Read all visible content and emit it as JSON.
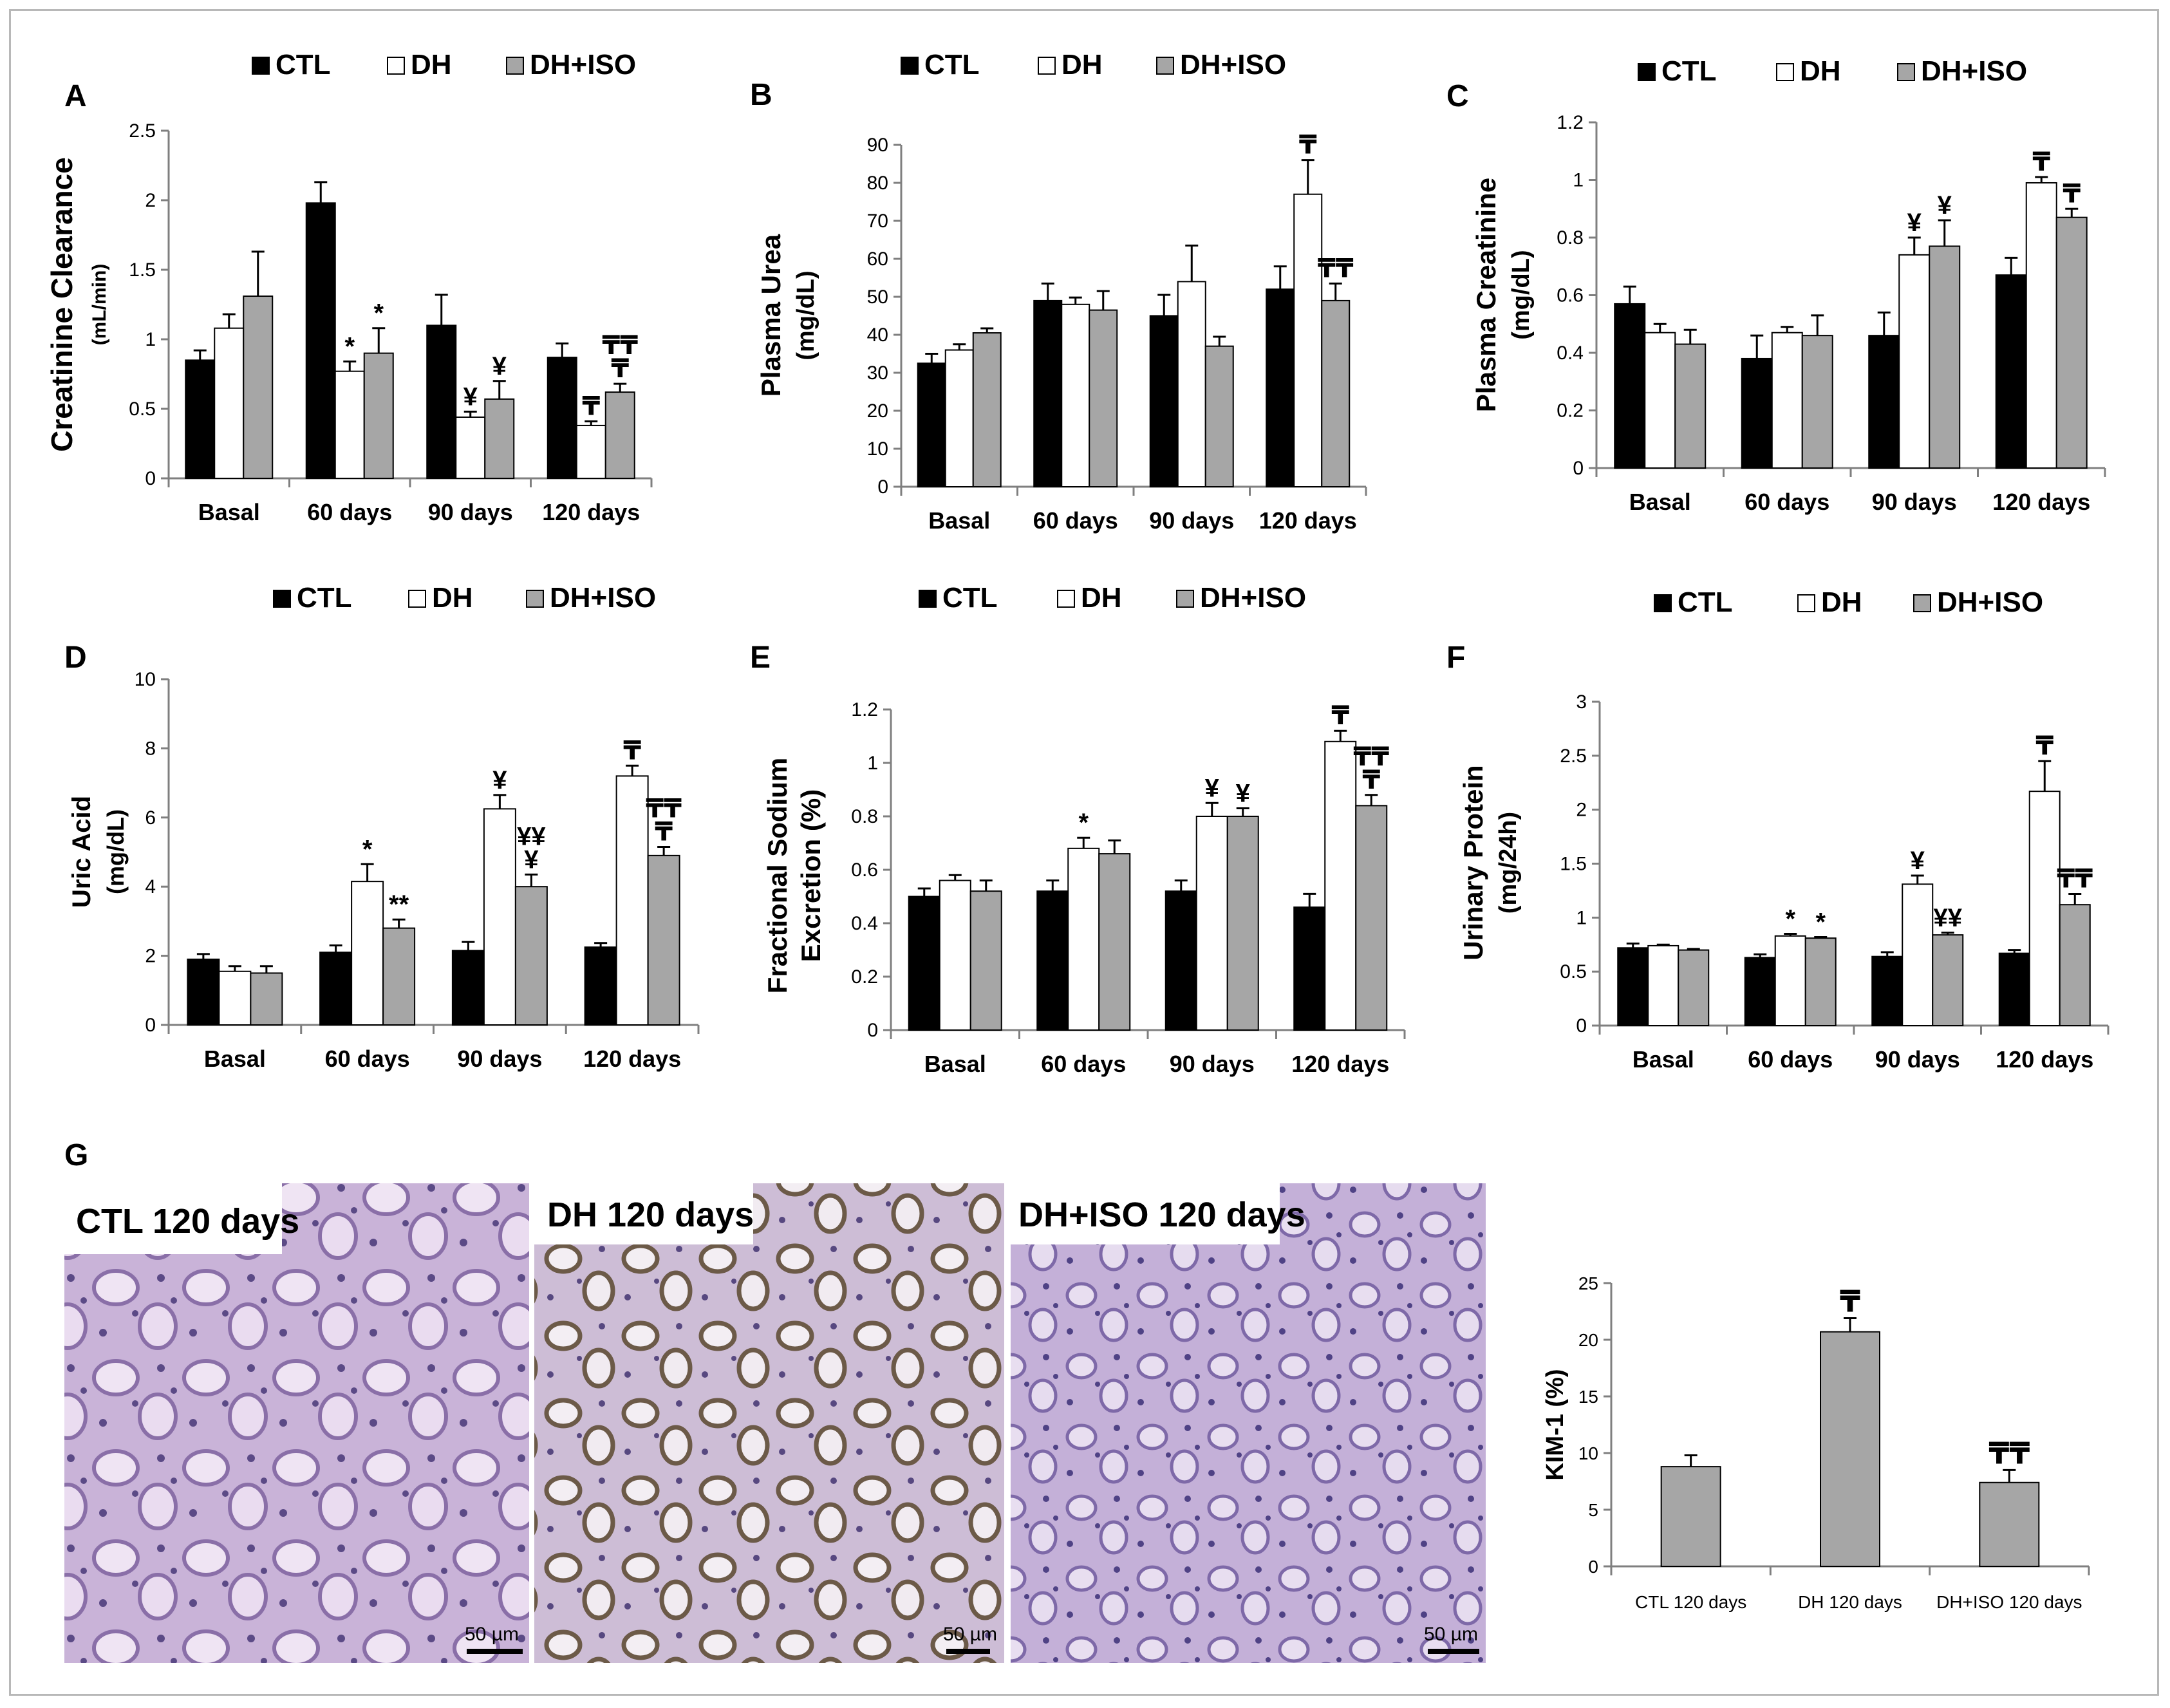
{
  "legend": {
    "ctl": "CTL",
    "dh": "DH",
    "dhiso": "DH+ISO"
  },
  "colors": {
    "ctl": "#000000",
    "dh": "#ffffff",
    "dhiso": "#a6a6a6",
    "axis": "#7f7f7f",
    "text": "#000000"
  },
  "histology": {
    "panel_letter": "G",
    "images": [
      {
        "caption": "CTL 120 days",
        "scale": "50 µm"
      },
      {
        "caption": "DH 120 days",
        "scale": "50 µm"
      },
      {
        "caption": "DH+ISO 120 days",
        "scale": "50 µm"
      }
    ]
  },
  "chart_data": [
    {
      "id": "A",
      "type": "bar",
      "letter": "A",
      "ylabel": "Creatinine Clearance",
      "yunit": "(mL/min)",
      "categories": [
        "Basal",
        "60 days",
        "90 days",
        "120 days"
      ],
      "ylim": [
        0,
        2.5
      ],
      "yticks": [
        0,
        0.5,
        1,
        1.5,
        2,
        2.5
      ],
      "ytick_labels": [
        "0",
        "0.5",
        "1",
        "1.5",
        "2",
        "2.5"
      ],
      "series": [
        {
          "name": "CTL",
          "values": [
            0.85,
            1.98,
            1.1,
            0.87
          ],
          "errors": [
            0.07,
            0.15,
            0.22,
            0.1
          ],
          "marks": [
            "",
            "",
            "",
            ""
          ]
        },
        {
          "name": "DH",
          "values": [
            1.08,
            0.77,
            0.44,
            0.38
          ],
          "errors": [
            0.1,
            0.07,
            0.04,
            0.03
          ],
          "marks": [
            "",
            "*",
            "¥",
            "₸"
          ]
        },
        {
          "name": "DH+ISO",
          "values": [
            1.31,
            0.9,
            0.57,
            0.62
          ],
          "errors": [
            0.32,
            0.18,
            0.13,
            0.06
          ],
          "marks": [
            "",
            "*",
            "¥",
            "₸₸\n₸"
          ]
        }
      ]
    },
    {
      "id": "B",
      "type": "bar",
      "letter": "B",
      "ylabel": "Plasma Urea",
      "yunit": "(mg/dL)",
      "categories": [
        "Basal",
        "60 days",
        "90 days",
        "120 days"
      ],
      "ylim": [
        0,
        90
      ],
      "yticks": [
        0,
        10,
        20,
        30,
        40,
        50,
        60,
        70,
        80,
        90
      ],
      "ytick_labels": [
        "0",
        "10",
        "20",
        "30",
        "40",
        "50",
        "60",
        "70",
        "80",
        "90"
      ],
      "series": [
        {
          "name": "CTL",
          "values": [
            32.5,
            49,
            45,
            52
          ],
          "errors": [
            2.5,
            4.5,
            5.5,
            6
          ],
          "marks": [
            "",
            "",
            "",
            ""
          ]
        },
        {
          "name": "DH",
          "values": [
            36,
            48,
            54,
            77
          ],
          "errors": [
            1.5,
            1.8,
            9.5,
            9
          ],
          "marks": [
            "",
            "",
            "",
            "₸"
          ]
        },
        {
          "name": "DH+ISO",
          "values": [
            40.5,
            46.5,
            37,
            49
          ],
          "errors": [
            1.2,
            5,
            2.5,
            4.5
          ],
          "marks": [
            "",
            "",
            "",
            "₸₸"
          ]
        }
      ]
    },
    {
      "id": "C",
      "type": "bar",
      "letter": "C",
      "ylabel": "Plasma Creatinine",
      "yunit": "(mg/dL)",
      "categories": [
        "Basal",
        "60 days",
        "90 days",
        "120 days"
      ],
      "ylim": [
        0,
        1.2
      ],
      "yticks": [
        0,
        0.2,
        0.4,
        0.6,
        0.8,
        1,
        1.2
      ],
      "ytick_labels": [
        "0",
        "0.2",
        "0.4",
        "0.6",
        "0.8",
        "1",
        "1.2"
      ],
      "series": [
        {
          "name": "CTL",
          "values": [
            0.57,
            0.38,
            0.46,
            0.67
          ],
          "errors": [
            0.06,
            0.08,
            0.08,
            0.06
          ],
          "marks": [
            "",
            "",
            "",
            ""
          ]
        },
        {
          "name": "DH",
          "values": [
            0.47,
            0.47,
            0.74,
            0.99
          ],
          "errors": [
            0.03,
            0.02,
            0.06,
            0.02
          ],
          "marks": [
            "",
            "",
            "¥",
            "₸"
          ]
        },
        {
          "name": "DH+ISO",
          "values": [
            0.43,
            0.46,
            0.77,
            0.87
          ],
          "errors": [
            0.05,
            0.07,
            0.09,
            0.03
          ],
          "marks": [
            "",
            "",
            "¥",
            "₸"
          ]
        }
      ]
    },
    {
      "id": "D",
      "type": "bar",
      "letter": "D",
      "ylabel": "Uric Acid",
      "yunit": "(mg/dL)",
      "categories": [
        "Basal",
        "60 days",
        "90 days",
        "120 days"
      ],
      "ylim": [
        0,
        10
      ],
      "yticks": [
        0,
        2,
        4,
        6,
        8,
        10
      ],
      "ytick_labels": [
        "0",
        "2",
        "4",
        "6",
        "8",
        "10"
      ],
      "series": [
        {
          "name": "CTL",
          "values": [
            1.9,
            2.1,
            2.15,
            2.25
          ],
          "errors": [
            0.15,
            0.2,
            0.25,
            0.12
          ],
          "marks": [
            "",
            "",
            "",
            ""
          ]
        },
        {
          "name": "DH",
          "values": [
            1.55,
            4.15,
            6.25,
            7.2
          ],
          "errors": [
            0.15,
            0.5,
            0.4,
            0.3
          ],
          "marks": [
            "",
            "*",
            "¥",
            "₸"
          ]
        },
        {
          "name": "DH+ISO",
          "values": [
            1.5,
            2.8,
            4.0,
            4.9
          ],
          "errors": [
            0.2,
            0.25,
            0.35,
            0.25
          ],
          "marks": [
            "",
            "**",
            "¥¥\n¥",
            "₸₸\n₸"
          ]
        }
      ]
    },
    {
      "id": "E",
      "type": "bar",
      "letter": "E",
      "ylabel": "Fractional Sodium",
      "ylabel2": "Excretion (%)",
      "categories": [
        "Basal",
        "60 days",
        "90 days",
        "120 days"
      ],
      "ylim": [
        0,
        1.2
      ],
      "yticks": [
        0,
        0.2,
        0.4,
        0.6,
        0.8,
        1,
        1.2
      ],
      "ytick_labels": [
        "0",
        "0.2",
        "0.4",
        "0.6",
        "0.8",
        "1",
        "1.2"
      ],
      "series": [
        {
          "name": "CTL",
          "values": [
            0.5,
            0.52,
            0.52,
            0.46
          ],
          "errors": [
            0.03,
            0.04,
            0.04,
            0.05
          ],
          "marks": [
            "",
            "",
            "",
            ""
          ]
        },
        {
          "name": "DH",
          "values": [
            0.56,
            0.68,
            0.8,
            1.08
          ],
          "errors": [
            0.02,
            0.04,
            0.05,
            0.04
          ],
          "marks": [
            "",
            "*",
            "¥",
            "₸"
          ]
        },
        {
          "name": "DH+ISO",
          "values": [
            0.52,
            0.66,
            0.8,
            0.84
          ],
          "errors": [
            0.04,
            0.05,
            0.03,
            0.04
          ],
          "marks": [
            "",
            "",
            "¥",
            "₸₸\n₸"
          ]
        }
      ]
    },
    {
      "id": "F",
      "type": "bar",
      "letter": "F",
      "ylabel": "Urinary Protein",
      "yunit": "(mg/24h)",
      "categories": [
        "Basal",
        "60 days",
        "90 days",
        "120 days"
      ],
      "ylim": [
        0,
        3
      ],
      "yticks": [
        0,
        0.5,
        1,
        1.5,
        2,
        2.5,
        3
      ],
      "ytick_labels": [
        "0",
        "0.5",
        "1",
        "1.5",
        "2",
        "2.5",
        "3"
      ],
      "series": [
        {
          "name": "CTL",
          "values": [
            0.72,
            0.63,
            0.64,
            0.67
          ],
          "errors": [
            0.04,
            0.03,
            0.04,
            0.03
          ],
          "marks": [
            "",
            "",
            "",
            ""
          ]
        },
        {
          "name": "DH",
          "values": [
            0.74,
            0.83,
            1.31,
            2.17
          ],
          "errors": [
            0.01,
            0.02,
            0.08,
            0.28
          ],
          "marks": [
            "",
            "*",
            "¥",
            "₸"
          ]
        },
        {
          "name": "DH+ISO",
          "values": [
            0.7,
            0.81,
            0.84,
            1.12
          ],
          "errors": [
            0.01,
            0.01,
            0.02,
            0.1
          ],
          "marks": [
            "",
            "*",
            "¥¥",
            "₸₸"
          ]
        }
      ]
    },
    {
      "id": "KIM",
      "type": "bar",
      "ylabel": "KIM-1  (%)",
      "categories": [
        "CTL 120 days",
        "DH 120 days",
        "DH+ISO 120 days"
      ],
      "ylim": [
        0,
        25
      ],
      "yticks": [
        0,
        5,
        10,
        15,
        20,
        25
      ],
      "ytick_labels": [
        "0",
        "5",
        "10",
        "15",
        "20",
        "25"
      ],
      "series": [
        {
          "name": "KIM-1",
          "values": [
            8.8,
            20.7,
            7.4
          ],
          "errors": [
            1,
            1.2,
            1.1
          ],
          "marks": [
            "",
            "₸",
            "₸₸"
          ]
        }
      ]
    }
  ]
}
